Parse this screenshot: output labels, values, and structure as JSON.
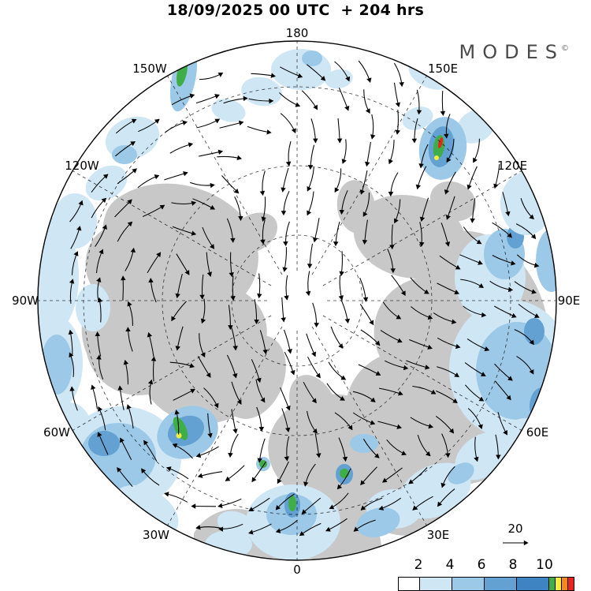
{
  "header": {
    "title": "18/09/2025 00 UTC  + 204 hrs",
    "logo_text": "MODES",
    "logo_copyright": "©"
  },
  "chart_data": {
    "type": "map",
    "projection": "northern-hemisphere-polar-stereographic",
    "title": "18/09/2025 00 UTC  + 204 hrs",
    "longitude_labels": [
      "180",
      "150W",
      "150E",
      "120W",
      "120E",
      "90W",
      "90E",
      "60W",
      "60E",
      "30W",
      "30E",
      "0"
    ],
    "colorbar": {
      "tick_labels": [
        "2",
        "4",
        "6",
        "8",
        "10"
      ],
      "colors": [
        "#ffffff",
        "#cfe6f5",
        "#9cc9e7",
        "#62a1d1",
        "#3e84c2",
        "#3fae49",
        "#f5ee3e",
        "#f6871f",
        "#e8241f"
      ]
    },
    "reference_vector": {
      "label": "20"
    },
    "land_color": "#c8c8c8",
    "shading_colors": {
      "light_blue": "#cfe6f5",
      "medium_blue": "#9cc9e7",
      "dark_blue": "#62a1d1",
      "darker_blue": "#3e84c2",
      "green": "#3fae49",
      "yellow": "#f5ee3e",
      "orange": "#f6871f",
      "red": "#e8241f"
    }
  }
}
